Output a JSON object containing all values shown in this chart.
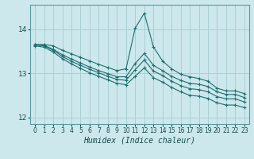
{
  "xlabel": "Humidex (Indice chaleur)",
  "background_color": "#cce8ec",
  "grid_color": "#aacfd4",
  "line_color": "#1e6e6e",
  "xlim": [
    -0.5,
    23.5
  ],
  "ylim": [
    11.85,
    14.55
  ],
  "yticks": [
    12,
    13,
    14
  ],
  "xticks": [
    0,
    1,
    2,
    3,
    4,
    5,
    6,
    7,
    8,
    9,
    10,
    11,
    12,
    13,
    14,
    15,
    16,
    17,
    18,
    19,
    20,
    21,
    22,
    23
  ],
  "series": [
    {
      "x": [
        0,
        1,
        2,
        3,
        4,
        5,
        6,
        7,
        8,
        9,
        10,
        11,
        12,
        13,
        14,
        15,
        16,
        17,
        18,
        19,
        20,
        21,
        22,
        23
      ],
      "y": [
        13.65,
        13.65,
        13.62,
        13.52,
        13.44,
        13.36,
        13.28,
        13.2,
        13.13,
        13.06,
        13.1,
        14.02,
        14.36,
        13.6,
        13.28,
        13.1,
        12.98,
        12.92,
        12.88,
        12.82,
        12.66,
        12.6,
        12.6,
        12.54
      ]
    },
    {
      "x": [
        0,
        1,
        2,
        3,
        4,
        5,
        6,
        7,
        8,
        9,
        10,
        11,
        12,
        13,
        14,
        15,
        16,
        17,
        18,
        19,
        20,
        21,
        22,
        23
      ],
      "y": [
        13.65,
        13.63,
        13.54,
        13.42,
        13.32,
        13.23,
        13.14,
        13.06,
        12.99,
        12.92,
        12.92,
        13.22,
        13.45,
        13.18,
        13.06,
        12.93,
        12.84,
        12.77,
        12.75,
        12.7,
        12.58,
        12.52,
        12.52,
        12.45
      ]
    },
    {
      "x": [
        0,
        1,
        2,
        3,
        4,
        5,
        6,
        7,
        8,
        9,
        10,
        11,
        12,
        13,
        14,
        15,
        16,
        17,
        18,
        19,
        20,
        21,
        22,
        23
      ],
      "y": [
        13.64,
        13.62,
        13.52,
        13.38,
        13.27,
        13.18,
        13.09,
        13.01,
        12.93,
        12.86,
        12.84,
        13.08,
        13.3,
        13.05,
        12.95,
        12.82,
        12.72,
        12.65,
        12.63,
        12.58,
        12.47,
        12.42,
        12.42,
        12.35
      ]
    },
    {
      "x": [
        0,
        1,
        2,
        3,
        4,
        5,
        6,
        7,
        8,
        9,
        10,
        11,
        12,
        13,
        14,
        15,
        16,
        17,
        18,
        19,
        20,
        21,
        22,
        23
      ],
      "y": [
        13.62,
        13.59,
        13.48,
        13.33,
        13.21,
        13.11,
        13.01,
        12.93,
        12.85,
        12.77,
        12.74,
        12.93,
        13.12,
        12.9,
        12.8,
        12.68,
        12.58,
        12.5,
        12.48,
        12.43,
        12.33,
        12.28,
        12.28,
        12.22
      ]
    }
  ]
}
